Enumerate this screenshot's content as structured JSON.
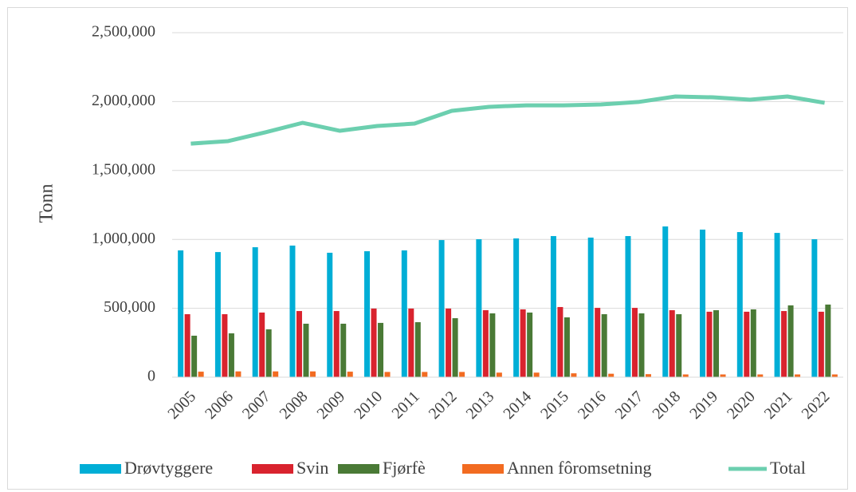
{
  "chart_data": {
    "type": "bar_line",
    "y_axis_label": "Tonn",
    "categories": [
      "2005",
      "2006",
      "2007",
      "2008",
      "2009",
      "2010",
      "2011",
      "2012",
      "2013",
      "2014",
      "2015",
      "2016",
      "2017",
      "2018",
      "2019",
      "2020",
      "2021",
      "2022"
    ],
    "series": [
      {
        "name": "Drøvtyggere",
        "type": "bar",
        "color": "#00aed6",
        "values": [
          920000,
          908000,
          943000,
          955000,
          903000,
          914000,
          920000,
          995000,
          1001000,
          1007000,
          1024000,
          1013000,
          1024000,
          1094000,
          1071000,
          1053000,
          1047000,
          1001000
        ]
      },
      {
        "name": "Svin",
        "type": "bar",
        "color": "#d9232e",
        "values": [
          457000,
          457000,
          469000,
          480000,
          480000,
          498000,
          498000,
          498000,
          486000,
          492000,
          509000,
          503000,
          503000,
          486000,
          475000,
          475000,
          480000,
          475000
        ]
      },
      {
        "name": "Fjørfè",
        "type": "bar",
        "color": "#4a7a36",
        "values": [
          301000,
          318000,
          347000,
          388000,
          388000,
          394000,
          399000,
          428000,
          463000,
          469000,
          434000,
          457000,
          463000,
          457000,
          486000,
          492000,
          521000,
          527000
        ]
      },
      {
        "name": "Annen fôromsetning",
        "type": "bar",
        "color": "#f26b21",
        "values": [
          40000,
          42000,
          42000,
          42000,
          40000,
          38000,
          38000,
          38000,
          33000,
          33000,
          28000,
          25000,
          22000,
          20000,
          20000,
          20000,
          20000,
          20000
        ]
      },
      {
        "name": "Total",
        "type": "line",
        "color": "#6ccfaf",
        "values": [
          1695000,
          1713000,
          1777000,
          1846000,
          1788000,
          1823000,
          1840000,
          1933000,
          1962000,
          1973000,
          1973000,
          1979000,
          1997000,
          2037000,
          2031000,
          2014000,
          2037000,
          1991000
        ]
      }
    ],
    "ylim": [
      0,
      2500000
    ],
    "yticks": [
      0,
      {
        "value": 500000,
        "label": "500,000"
      },
      {
        "value": 1000000,
        "label": "1,000,000"
      },
      {
        "value": 1500000,
        "label": "1,500,000"
      },
      {
        "value": 2000000,
        "label": "2,000,000"
      },
      {
        "value": 2500000,
        "label": "2,500,000"
      }
    ],
    "grid": true,
    "legend": "bottom"
  }
}
